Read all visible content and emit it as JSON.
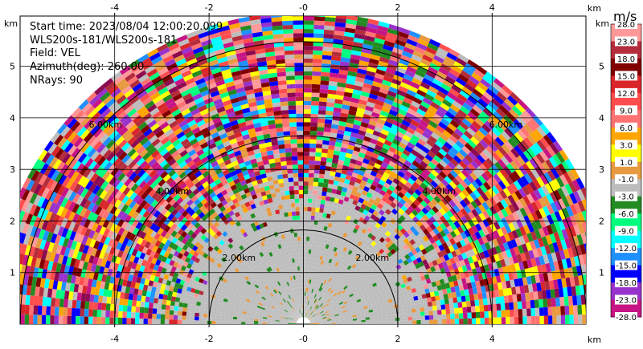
{
  "header": {
    "start_time": "Start time: 2023/08/04 12:00:20.099",
    "instrument": "WLS200s-181/WLS200s-181",
    "field": "Field: VEL",
    "azimuth": "Azimuth(deg): 260.00",
    "nrays": "NRays: 90"
  },
  "axes": {
    "unit": "km",
    "x_ticks": [
      "-4",
      "-2",
      "-0",
      "2",
      "4"
    ],
    "y_ticks": [
      "1",
      "2",
      "3",
      "4",
      "5"
    ]
  },
  "range_rings": [
    {
      "label": "2.00km",
      "range": 2
    },
    {
      "label": "4.00km",
      "range": 4
    },
    {
      "label": "6.00km",
      "range": 6
    }
  ],
  "colorbar": {
    "unit": "m/s",
    "labels": [
      "28.0",
      "23.0",
      "18.0",
      "15.0",
      "12.0",
      "9.0",
      "6.0",
      "3.0",
      "1.0",
      "-1.0",
      "-3.0",
      "-6.0",
      "-9.0",
      "-12.0",
      "-15.0",
      "-18.0",
      "-23.0",
      "-28.0"
    ],
    "colors": [
      "#ff9999",
      "#b32d3c",
      "#800000",
      "#d9262a",
      "#ff4d4d",
      "#ff7373",
      "#ffa500",
      "#ffff00",
      "#e89a40",
      "#bdbdbd",
      "#228b22",
      "#00ff7f",
      "#00ffff",
      "#1e90ff",
      "#0000ff",
      "#9932cc",
      "#c71585",
      "#8b0a50"
    ]
  }
}
